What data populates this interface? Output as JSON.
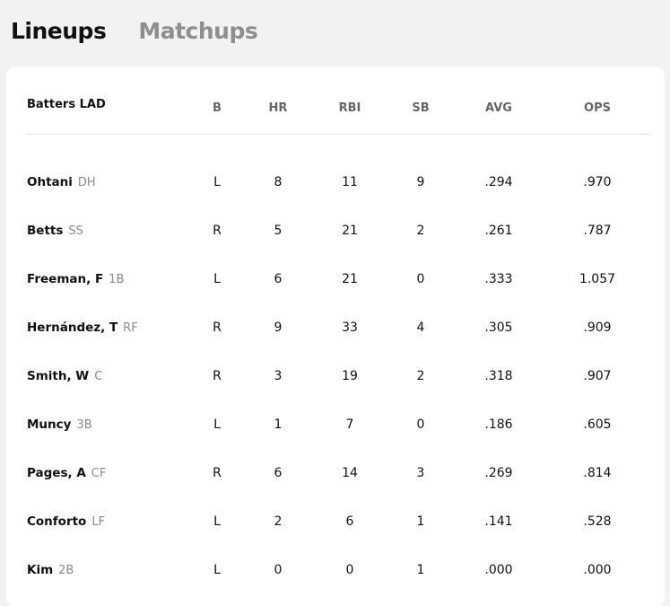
{
  "tabs": [
    {
      "label": "Lineups",
      "active": true
    },
    {
      "label": "Matchups",
      "active": false
    }
  ],
  "table": {
    "team_header": "Batters LAD",
    "columns": [
      "B",
      "HR",
      "RBI",
      "SB",
      "AVG",
      "OPS"
    ],
    "rows": [
      {
        "name": "Ohtani",
        "pos": "DH",
        "stats": [
          "L",
          "8",
          "11",
          "9",
          ".294",
          ".970"
        ]
      },
      {
        "name": "Betts",
        "pos": "SS",
        "stats": [
          "R",
          "5",
          "21",
          "2",
          ".261",
          ".787"
        ]
      },
      {
        "name": "Freeman, F",
        "pos": "1B",
        "stats": [
          "L",
          "6",
          "21",
          "0",
          ".333",
          "1.057"
        ]
      },
      {
        "name": "Hernández, T",
        "pos": "RF",
        "stats": [
          "R",
          "9",
          "33",
          "4",
          ".305",
          ".909"
        ]
      },
      {
        "name": "Smith, W",
        "pos": "C",
        "stats": [
          "R",
          "3",
          "19",
          "2",
          ".318",
          ".907"
        ]
      },
      {
        "name": "Muncy",
        "pos": "3B",
        "stats": [
          "L",
          "1",
          "7",
          "0",
          ".186",
          ".605"
        ]
      },
      {
        "name": "Pages, A",
        "pos": "CF",
        "stats": [
          "R",
          "6",
          "14",
          "3",
          ".269",
          ".814"
        ]
      },
      {
        "name": "Conforto",
        "pos": "LF",
        "stats": [
          "L",
          "2",
          "6",
          "1",
          ".141",
          ".528"
        ]
      },
      {
        "name": "Kim",
        "pos": "2B",
        "stats": [
          "L",
          "0",
          "0",
          "1",
          ".000",
          ".000"
        ]
      }
    ]
  }
}
